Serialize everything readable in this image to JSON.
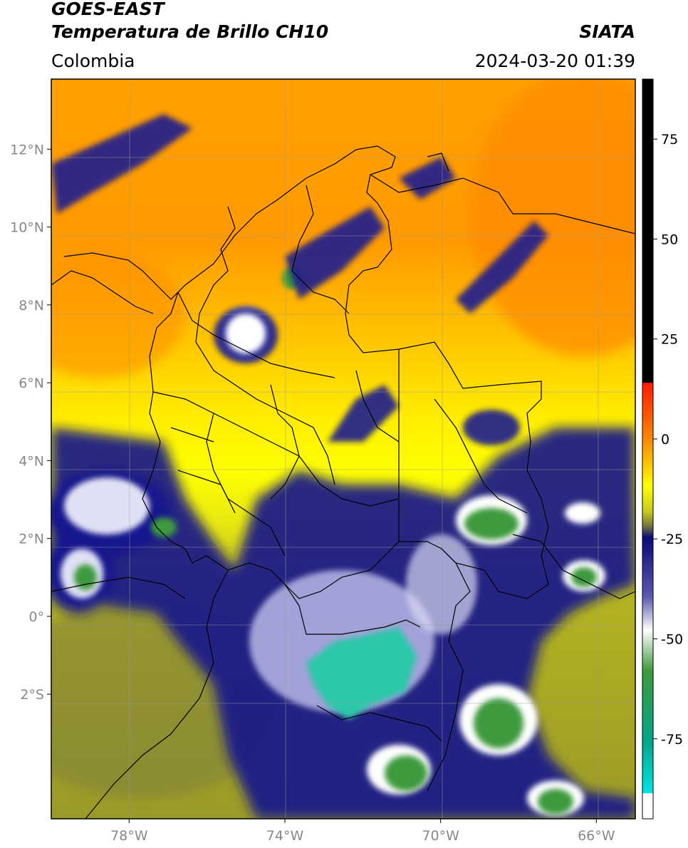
{
  "header": {
    "satellite": "GOES-EAST",
    "product": "Temperatura de Brillo CH10",
    "region": "Colombia",
    "organization": "SIATA",
    "timestamp": "2024-03-20 01:39"
  },
  "map": {
    "lat_ticks": [
      {
        "value": 12,
        "label": "12°N"
      },
      {
        "value": 10,
        "label": "10°N"
      },
      {
        "value": 8,
        "label": "8°N"
      },
      {
        "value": 6,
        "label": "6°N"
      },
      {
        "value": 4,
        "label": "4°N"
      },
      {
        "value": 2,
        "label": "2°N"
      },
      {
        "value": 0,
        "label": "0°"
      },
      {
        "value": -2,
        "label": "2°S"
      }
    ],
    "lon_ticks": [
      {
        "value": -78,
        "label": "78°W"
      },
      {
        "value": -74,
        "label": "74°W"
      },
      {
        "value": -70,
        "label": "70°W"
      },
      {
        "value": -66,
        "label": "66°W"
      }
    ],
    "lat_range": [
      -5.2,
      13.8
    ],
    "lon_range": [
      -80,
      -65
    ]
  },
  "colorbar": {
    "ticks": [
      {
        "value": 75,
        "label": "75"
      },
      {
        "value": 50,
        "label": "50"
      },
      {
        "value": 25,
        "label": "25"
      },
      {
        "value": 0,
        "label": "0"
      },
      {
        "value": -25,
        "label": "-25"
      },
      {
        "value": -50,
        "label": "-50"
      },
      {
        "value": -75,
        "label": "-75"
      }
    ],
    "range": [
      -95,
      90
    ],
    "colors": {
      "top": "#000000",
      "red": "#ff1a00",
      "orange": "#ff8c00",
      "yellow": "#ffff00",
      "olive": "#a8a820",
      "navy": "#0a0a7a",
      "white": "#ffffff",
      "green": "#3c9a3c",
      "cyan": "#00e5e5"
    }
  }
}
